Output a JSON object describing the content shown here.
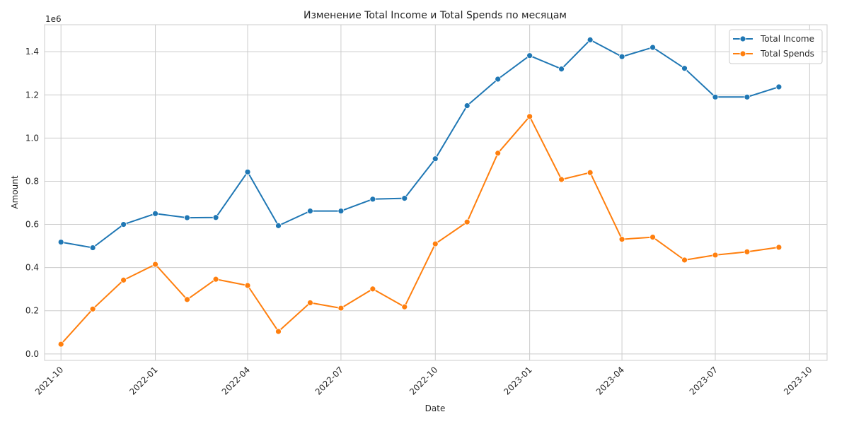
{
  "chart_data": {
    "type": "line",
    "title": "Изменение Total Income и Total Spends по месяцам",
    "xlabel": "Date",
    "ylabel": "Amount",
    "y_offset_label": "1e6",
    "grid": true,
    "legend_position": "top-right",
    "x": [
      "2021-10-01",
      "2021-11-01",
      "2021-12-01",
      "2022-01-01",
      "2022-02-01",
      "2022-03-01",
      "2022-04-01",
      "2022-05-01",
      "2022-06-01",
      "2022-07-01",
      "2022-08-01",
      "2022-09-01",
      "2022-10-01",
      "2022-11-01",
      "2022-12-01",
      "2023-01-01",
      "2023-02-01",
      "2023-03-01",
      "2023-04-01",
      "2023-05-01",
      "2023-06-01",
      "2023-07-01",
      "2023-08-01",
      "2023-09-01"
    ],
    "xlim": [
      "2021-09-15",
      "2023-10-18"
    ],
    "ylim": [
      -30000,
      1525000
    ],
    "x_ticks": [
      "2021-10",
      "2022-01",
      "2022-04",
      "2022-07",
      "2022-10",
      "2023-01",
      "2023-04",
      "2023-07",
      "2023-10"
    ],
    "y_ticks": [
      "0.0",
      "0.2",
      "0.4",
      "0.6",
      "0.8",
      "1.0",
      "1.2",
      "1.4"
    ],
    "series": [
      {
        "name": "Total Income",
        "color": "#1f77b4",
        "values": [
          518000,
          492000,
          600000,
          650000,
          631000,
          632000,
          843000,
          594000,
          662000,
          662000,
          717000,
          721000,
          904000,
          1150000,
          1273000,
          1382000,
          1320000,
          1455000,
          1377000,
          1420000,
          1323000,
          1190000,
          1190000,
          1237000
        ]
      },
      {
        "name": "Total Spends",
        "color": "#ff7f0e",
        "values": [
          45000,
          208000,
          342000,
          415000,
          252000,
          346000,
          317000,
          104000,
          237000,
          212000,
          301000,
          218000,
          510000,
          611000,
          930000,
          1100000,
          808000,
          840000,
          531000,
          541000,
          435000,
          458000,
          473000,
          494000
        ]
      }
    ]
  }
}
